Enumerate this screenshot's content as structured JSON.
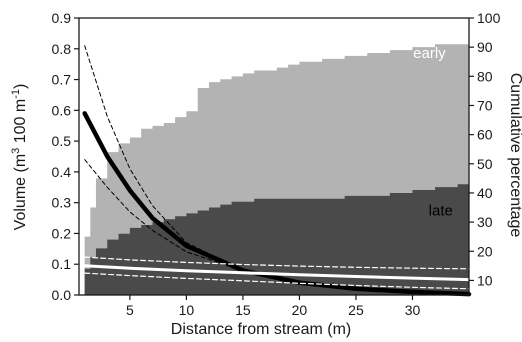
{
  "chart_data": {
    "type": "area",
    "title": "",
    "xlabel": "Distance from stream (m)",
    "ylabel_left": {
      "main": "Volume (m",
      "sup1": "3",
      "mid": " 100 m",
      "sup2": "-1",
      "end": ")"
    },
    "ylabel_right": "Cumulative percentage",
    "xlim": [
      0.5,
      35
    ],
    "ylim_left": [
      0,
      0.9
    ],
    "ylim_right": [
      5,
      100
    ],
    "xticks": [
      5,
      10,
      15,
      20,
      25,
      30
    ],
    "yticks_left": [
      "0.0",
      "0.1",
      "0.2",
      "0.3",
      "0.4",
      "0.5",
      "0.6",
      "0.7",
      "0.8",
      "0.9"
    ],
    "yticks_right": [
      10,
      20,
      30,
      40,
      50,
      60,
      70,
      80,
      90,
      100
    ],
    "grid": false,
    "colors": {
      "early": "#b3b3b3",
      "late": "#4a4a4a",
      "fit": "#000000",
      "ci": "#000000",
      "white_fit": "#ffffff"
    },
    "series": [
      {
        "name": "early",
        "kind": "cumulative-area",
        "axis": "right",
        "x": [
          1,
          1.5,
          2,
          3,
          4,
          5,
          6,
          7,
          8,
          9,
          10,
          11,
          12,
          13,
          14,
          15,
          16,
          17,
          18,
          19,
          20,
          22,
          24,
          26,
          28,
          30,
          32,
          34,
          35
        ],
        "y": [
          25,
          35,
          45,
          54,
          57,
          59,
          62,
          63,
          64,
          66,
          68,
          76,
          78,
          79,
          80,
          81,
          82,
          82,
          83,
          84,
          85,
          86,
          87,
          88,
          89,
          90,
          91,
          91,
          92
        ]
      },
      {
        "name": "late",
        "kind": "cumulative-area",
        "axis": "right",
        "x": [
          1,
          1.5,
          2,
          3,
          4,
          5,
          6,
          7,
          8,
          9,
          10,
          11,
          12,
          13,
          14,
          15,
          16,
          18,
          20,
          22,
          24,
          26,
          28,
          30,
          32,
          34,
          35
        ],
        "y": [
          14,
          18,
          21,
          24,
          26,
          28,
          29,
          30,
          31,
          32,
          33,
          34,
          35,
          36,
          37,
          37,
          38,
          38,
          38,
          38,
          39,
          39,
          40,
          41,
          42,
          43,
          44
        ]
      },
      {
        "name": "",
        "kind": "fit",
        "axis": "left",
        "x": [
          1,
          3,
          5,
          7,
          10,
          15,
          20,
          25,
          30,
          35
        ],
        "y": [
          0.59,
          0.45,
          0.34,
          0.25,
          0.16,
          0.08,
          0.04,
          0.02,
          0.01,
          0.003
        ]
      },
      {
        "name": "",
        "kind": "ci",
        "axis": "left",
        "x": [
          1,
          3,
          5,
          7,
          10,
          15,
          20,
          25,
          30,
          35
        ],
        "y": [
          0.81,
          0.58,
          0.41,
          0.29,
          0.17,
          0.08,
          0.04,
          0.02,
          0.01,
          0.003
        ]
      },
      {
        "name": "",
        "kind": "ci",
        "axis": "left",
        "x": [
          1,
          3,
          5,
          7,
          10,
          15,
          20,
          25,
          30,
          35
        ],
        "y": [
          0.44,
          0.35,
          0.27,
          0.21,
          0.14,
          0.08,
          0.04,
          0.02,
          0.01,
          0.003
        ]
      },
      {
        "name": "",
        "kind": "white-fit",
        "axis": "left",
        "x": [
          1,
          5,
          10,
          15,
          20,
          25,
          30,
          35
        ],
        "y": [
          0.095,
          0.087,
          0.079,
          0.072,
          0.066,
          0.06,
          0.055,
          0.05
        ]
      },
      {
        "name": "",
        "kind": "white-ci",
        "axis": "left",
        "x": [
          1,
          5,
          10,
          15,
          20,
          25,
          30,
          35
        ],
        "y": [
          0.123,
          0.114,
          0.106,
          0.099,
          0.094,
          0.09,
          0.087,
          0.085
        ]
      },
      {
        "name": "",
        "kind": "white-ci",
        "axis": "left",
        "x": [
          1,
          5,
          10,
          15,
          20,
          25,
          30,
          35
        ],
        "y": [
          0.071,
          0.063,
          0.054,
          0.046,
          0.038,
          0.031,
          0.025,
          0.02
        ]
      }
    ],
    "annotations": [
      {
        "text": "early",
        "x": 31.5,
        "y_right": 91,
        "color": "#ffffff"
      },
      {
        "text": "late",
        "x": 32.5,
        "y_right": 37,
        "color": "#000000"
      }
    ]
  }
}
